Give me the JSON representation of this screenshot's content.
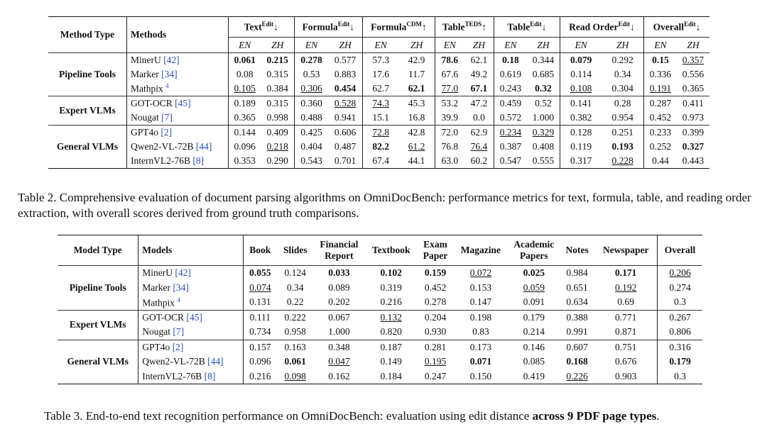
{
  "table2": {
    "header": {
      "method_type": "Method Type",
      "methods": "Methods",
      "metrics": [
        {
          "base": "Text",
          "sup": "Edit",
          "arrow": "↓"
        },
        {
          "base": "Formula",
          "sup": "Edit",
          "arrow": "↓"
        },
        {
          "base": "Formula",
          "sup": "CDM",
          "arrow": "↑"
        },
        {
          "base": "Table",
          "sup": "TEDS",
          "arrow": "↑"
        },
        {
          "base": "Table",
          "sup": "Edit",
          "arrow": "↓"
        },
        {
          "base": "Read Order",
          "sup": "Edit",
          "arrow": "↓"
        },
        {
          "base": "Overall",
          "sup": "Edit",
          "arrow": "↓"
        }
      ],
      "sub": [
        "EN",
        "ZH"
      ]
    },
    "groups": [
      {
        "type": "Pipeline Tools",
        "rows": [
          {
            "name": "MinerU",
            "ref": "[42]",
            "vals": [
              "0.061",
              "0.215",
              "0.278",
              "0.577",
              "57.3",
              "42.9",
              "78.6",
              "62.1",
              "0.18",
              "0.344",
              "0.079",
              "0.292",
              "0.15",
              "0.357"
            ]
          },
          {
            "name": "Marker",
            "ref": "[34]",
            "vals": [
              "0.08",
              "0.315",
              "0.53",
              "0.883",
              "17.6",
              "11.7",
              "67.6",
              "49.2",
              "0.619",
              "0.685",
              "0.114",
              "0.34",
              "0.336",
              "0.556"
            ]
          },
          {
            "name": "Mathpix",
            "ref": "4",
            "vals": [
              "0.105",
              "0.384",
              "0.306",
              "0.454",
              "62.7",
              "62.1",
              "77.0",
              "67.1",
              "0.243",
              "0.32",
              "0.108",
              "0.304",
              "0.191",
              "0.365"
            ]
          }
        ]
      },
      {
        "type": "Expert VLMs",
        "rows": [
          {
            "name": "GOT-OCR",
            "ref": "[45]",
            "vals": [
              "0.189",
              "0.315",
              "0.360",
              "0.528",
              "74.3",
              "45.3",
              "53.2",
              "47.2",
              "0.459",
              "0.52",
              "0.141",
              "0.28",
              "0.287",
              "0.411"
            ]
          },
          {
            "name": "Nougat",
            "ref": "[7]",
            "vals": [
              "0.365",
              "0.998",
              "0.488",
              "0.941",
              "15.1",
              "16.8",
              "39.9",
              "0.0",
              "0.572",
              "1.000",
              "0.382",
              "0.954",
              "0.452",
              "0.973"
            ]
          }
        ]
      },
      {
        "type": "General VLMs",
        "rows": [
          {
            "name": "GPT4o",
            "ref": "[2]",
            "vals": [
              "0.144",
              "0.409",
              "0.425",
              "0.606",
              "72.8",
              "42.8",
              "72.0",
              "62.9",
              "0.234",
              "0.329",
              "0.128",
              "0.251",
              "0.233",
              "0.399"
            ]
          },
          {
            "name": "Qwen2-VL-72B",
            "ref": "[44]",
            "vals": [
              "0.096",
              "0.218",
              "0.404",
              "0.487",
              "82.2",
              "61.2",
              "76.8",
              "76.4",
              "0.387",
              "0.408",
              "0.119",
              "0.193",
              "0.252",
              "0.327"
            ]
          },
          {
            "name": "InternVL2-76B",
            "ref": "[8]",
            "vals": [
              "0.353",
              "0.290",
              "0.543",
              "0.701",
              "67.4",
              "44.1",
              "63.0",
              "60.2",
              "0.547",
              "0.555",
              "0.317",
              "0.228",
              "0.44",
              "0.443"
            ]
          }
        ]
      }
    ],
    "caption": "Table 2. Comprehensive evaluation of document parsing algorithms on OmniDocBench: performance metrics for text, formula, table, and reading order extraction, with overall scores derived from ground truth comparisons."
  },
  "table3": {
    "header": [
      "Model Type",
      "Models",
      "Book",
      "Slides",
      "Financial Report",
      "Textbook",
      "Exam Paper",
      "Magazine",
      "Academic Papers",
      "Notes",
      "Newspaper",
      "Overall"
    ],
    "groups": [
      {
        "type": "Pipeline Tools",
        "rows": [
          {
            "name": "MinerU",
            "ref": "[42]",
            "vals": [
              "0.055",
              "0.124",
              "0.033",
              "0.102",
              "0.159",
              "0.072",
              "0.025",
              "0.984",
              "0.171",
              "0.206"
            ]
          },
          {
            "name": "Marker",
            "ref": "[34]",
            "vals": [
              "0.074",
              "0.34",
              "0.089",
              "0.319",
              "0.452",
              "0.153",
              "0.059",
              "0.651",
              "0.192",
              "0.274"
            ]
          },
          {
            "name": "Mathpix",
            "ref": "4",
            "vals": [
              "0.131",
              "0.22",
              "0.202",
              "0.216",
              "0.278",
              "0.147",
              "0.091",
              "0.634",
              "0.69",
              "0.3"
            ]
          }
        ]
      },
      {
        "type": "Expert VLMs",
        "rows": [
          {
            "name": "GOT-OCR",
            "ref": "[45]",
            "vals": [
              "0.111",
              "0.222",
              "0.067",
              "0.132",
              "0.204",
              "0.198",
              "0.179",
              "0.388",
              "0.771",
              "0.267"
            ]
          },
          {
            "name": "Nougat",
            "ref": "[7]",
            "vals": [
              "0.734",
              "0.958",
              "1.000",
              "0.820",
              "0.930",
              "0.83",
              "0.214",
              "0.991",
              "0.871",
              "0.806"
            ]
          }
        ]
      },
      {
        "type": "General VLMs",
        "rows": [
          {
            "name": "GPT4o",
            "ref": "[2]",
            "vals": [
              "0.157",
              "0.163",
              "0.348",
              "0.187",
              "0.281",
              "0.173",
              "0.146",
              "0.607",
              "0.751",
              "0.316"
            ]
          },
          {
            "name": "Qwen2-VL-72B",
            "ref": "[44]",
            "vals": [
              "0.096",
              "0.061",
              "0.047",
              "0.149",
              "0.195",
              "0.071",
              "0.085",
              "0.168",
              "0.676",
              "0.179"
            ]
          },
          {
            "name": "InternVL2-76B",
            "ref": "[8]",
            "vals": [
              "0.216",
              "0.098",
              "0.162",
              "0.184",
              "0.247",
              "0.150",
              "0.419",
              "0.226",
              "0.903",
              "0.3"
            ]
          }
        ]
      }
    ],
    "caption_main": "Table 3. End-to-end text recognition performance on OmniDocBench: evaluation using edit distance ",
    "caption_bold": "across 9 PDF page types",
    "caption_end": "."
  },
  "colors": {
    "citation": "#2a4fb5"
  }
}
